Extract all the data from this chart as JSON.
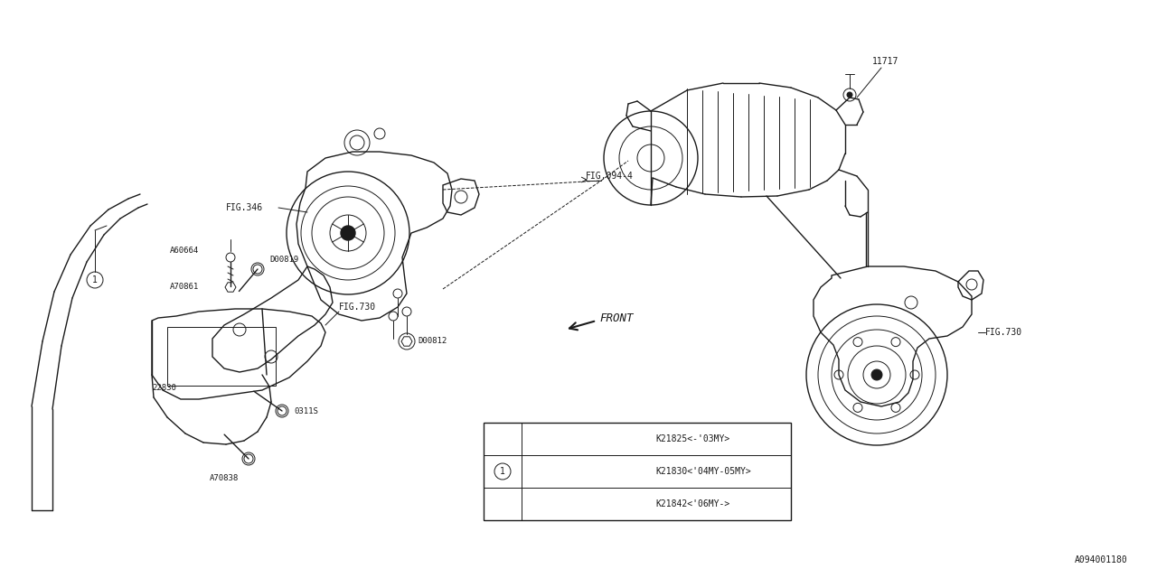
{
  "bg_color": "#ffffff",
  "line_color": "#1a1a1a",
  "lw_thin": 0.7,
  "lw_med": 1.0,
  "lw_thick": 1.5,
  "labels": {
    "fig094": "FIG.094-4",
    "fig346": "FIG.346",
    "fig730_center": "FIG.730",
    "fig730_right": "FIG.730",
    "part11717": "11717",
    "partA60664": "A60664",
    "partD00819": "D00819",
    "partA70861": "A70861",
    "partD00812": "D00812",
    "part22830": "22830",
    "part0311S": "0311S",
    "partA70838": "A70838",
    "front_label": "FRONT",
    "ref_num": "A094001180",
    "row1": "K21825<-'03MY>",
    "row2": "K21830<'04MY-05MY>",
    "row3": "K21842<'06MY->"
  }
}
